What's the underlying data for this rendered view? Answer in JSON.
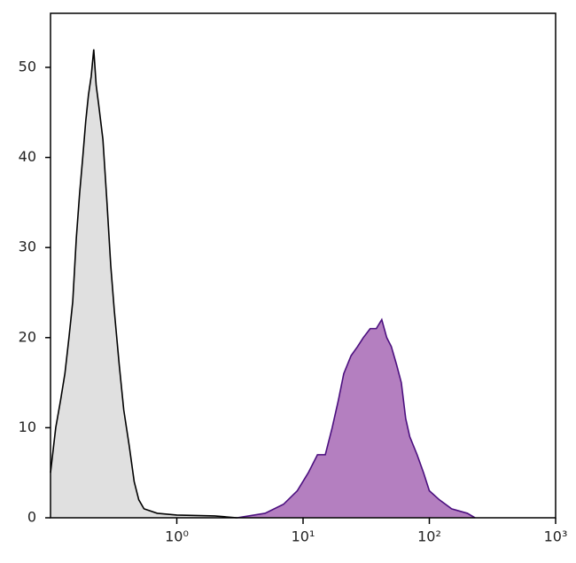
{
  "chart_data": {
    "type": "histogram-area",
    "xlog": true,
    "xlim": [
      0.1,
      1000
    ],
    "xticks": [
      {
        "value": 1,
        "label": "10⁰"
      },
      {
        "value": 10,
        "label": "10¹"
      },
      {
        "value": 100,
        "label": "10²"
      },
      {
        "value": 1000,
        "label": "10³"
      }
    ],
    "ylim": [
      0,
      56
    ],
    "yticks": [
      0,
      10,
      20,
      30,
      40,
      50
    ],
    "series": [
      {
        "color": "#000000",
        "fill": "#e0e0e0",
        "x": [
          0.1,
          0.11,
          0.12,
          0.13,
          0.14,
          0.15,
          0.16,
          0.17,
          0.18,
          0.19,
          0.2,
          0.21,
          0.22,
          0.23,
          0.24,
          0.26,
          0.28,
          0.3,
          0.32,
          0.35,
          0.38,
          0.42,
          0.46,
          0.5,
          0.55,
          0.7,
          1,
          2,
          3
        ],
        "values": [
          5,
          10,
          13,
          16,
          20,
          24,
          31,
          36,
          40,
          44,
          47,
          49,
          52,
          48,
          46,
          42,
          35,
          28,
          23,
          17,
          12,
          8,
          4,
          2,
          1,
          0.5,
          0.3,
          0.2,
          0
        ]
      },
      {
        "color": "#4b0f7f",
        "fill": "#b47fc0",
        "x": [
          3,
          5,
          7,
          9,
          11,
          13,
          15,
          17,
          19,
          21,
          24,
          27,
          30,
          34,
          38,
          42,
          46,
          50,
          55,
          60,
          65,
          70,
          80,
          90,
          100,
          120,
          150,
          200,
          230
        ],
        "values": [
          0,
          0.5,
          1.5,
          3,
          5,
          7,
          7,
          10,
          13,
          16,
          18,
          19,
          20,
          21,
          21,
          22,
          20,
          19,
          17,
          15,
          11,
          9,
          7,
          5,
          3,
          2,
          1,
          0.5,
          0
        ]
      }
    ]
  }
}
